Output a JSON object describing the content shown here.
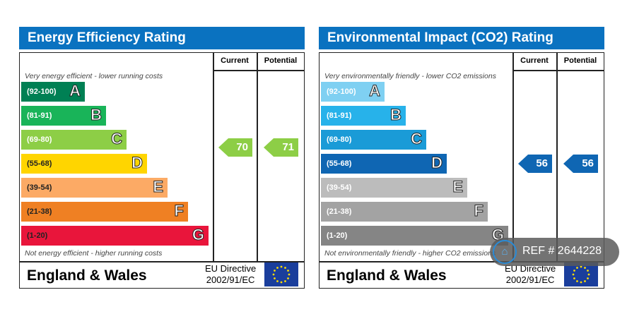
{
  "panels": [
    {
      "title": "Energy Efficiency Rating",
      "col_current": "Current",
      "col_potential": "Potential",
      "top_note": "Very energy efficient - lower running costs",
      "bottom_note": "Not energy efficient - higher running costs",
      "bands": [
        {
          "range": "(92-100)",
          "letter": "A",
          "color": "#008054"
        },
        {
          "range": "(81-91)",
          "letter": "B",
          "color": "#19b459"
        },
        {
          "range": "(69-80)",
          "letter": "C",
          "color": "#8dce46"
        },
        {
          "range": "(55-68)",
          "letter": "D",
          "color": "#ffd500"
        },
        {
          "range": "(39-54)",
          "letter": "E",
          "color": "#fcaa65"
        },
        {
          "range": "(21-38)",
          "letter": "F",
          "color": "#ef8023"
        },
        {
          "range": "(1-20)",
          "letter": "G",
          "color": "#e9153b"
        }
      ],
      "current": "70",
      "potential": "71",
      "current_band": 2,
      "potential_band": 2,
      "arrow_color": "#8dce46",
      "footer": "England & Wales",
      "eu_line1": "EU Directive",
      "eu_line2": "2002/91/EC"
    },
    {
      "title": "Environmental Impact (CO2) Rating",
      "col_current": "Current",
      "col_potential": "Potential",
      "top_note": "Very environmentally friendly - lower CO2 emissions",
      "bottom_note": "Not environmentally friendly - higher CO2 emissions",
      "bands": [
        {
          "range": "(92-100)",
          "letter": "A",
          "color": "#7fd0f2"
        },
        {
          "range": "(81-91)",
          "letter": "B",
          "color": "#27b2ea"
        },
        {
          "range": "(69-80)",
          "letter": "C",
          "color": "#1a9bd7"
        },
        {
          "range": "(55-68)",
          "letter": "D",
          "color": "#0f66b3"
        },
        {
          "range": "(39-54)",
          "letter": "E",
          "color": "#bcbcbc"
        },
        {
          "range": "(21-38)",
          "letter": "F",
          "color": "#a3a3a3"
        },
        {
          "range": "(1-20)",
          "letter": "G",
          "color": "#858585"
        }
      ],
      "current": "56",
      "potential": "56",
      "current_band": 3,
      "potential_band": 3,
      "arrow_color": "#0f66b3",
      "footer": "England & Wales",
      "eu_line1": "EU Directive",
      "eu_line2": "2002/91/EC"
    }
  ],
  "ref_badge": "REF # 2644228",
  "chart_data": {
    "type": "table",
    "charts": [
      {
        "title": "Energy Efficiency Rating",
        "current": 70,
        "potential": 71
      },
      {
        "title": "Environmental Impact (CO2) Rating",
        "current": 56,
        "potential": 56
      }
    ]
  }
}
